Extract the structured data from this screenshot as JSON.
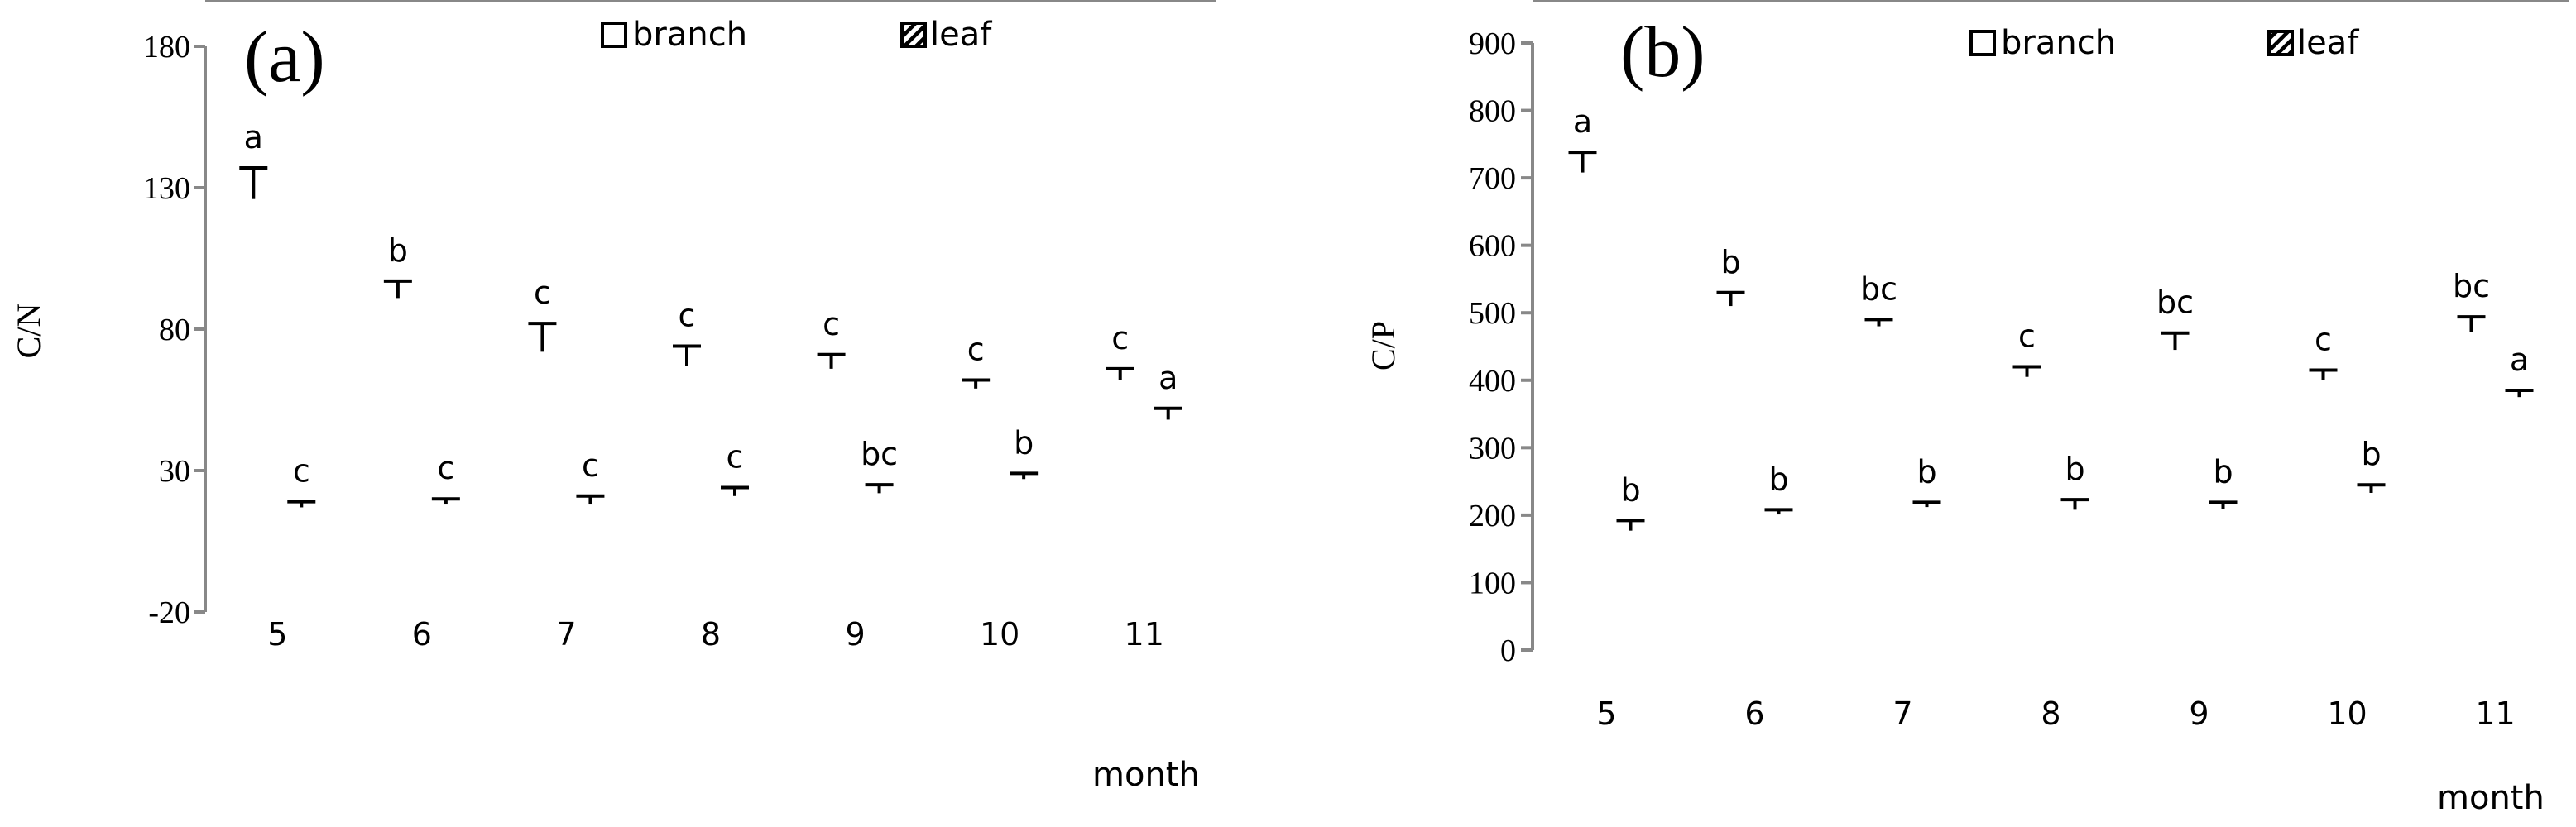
{
  "chart_data": [
    {
      "type": "bar",
      "panel_label": "(a)",
      "categories": [
        "5",
        "6",
        "7",
        "8",
        "9",
        "10",
        "11"
      ],
      "series": [
        {
          "name": "branch",
          "values": [
            126,
            91,
            72,
            67,
            66,
            59,
            62
          ],
          "errors": [
            11,
            6,
            10,
            7,
            5,
            3,
            4
          ],
          "letters": [
            "a",
            "b",
            "c",
            "c",
            "c",
            "c",
            "c"
          ]
        },
        {
          "name": "leaf",
          "values": [
            17,
            18,
            18,
            21,
            22,
            27,
            48
          ],
          "errors": [
            2,
            2,
            3,
            3,
            3,
            2,
            4
          ],
          "letters": [
            "c",
            "c",
            "c",
            "c",
            "bc",
            "b",
            "a"
          ]
        }
      ],
      "title": "",
      "xlabel": "month",
      "ylabel": "C/N",
      "ylim": [
        -20,
        180
      ],
      "yticks": [
        -20,
        30,
        80,
        130,
        180
      ],
      "legend": "top-center",
      "grid": false
    },
    {
      "type": "bar",
      "panel_label": "(b)",
      "categories": [
        "5",
        "6",
        "7",
        "8",
        "9",
        "10",
        "11"
      ],
      "series": [
        {
          "name": "branch",
          "values": [
            708,
            510,
            480,
            405,
            445,
            400,
            472
          ],
          "errors": [
            30,
            20,
            10,
            15,
            25,
            15,
            22
          ],
          "letters": [
            "a",
            "b",
            "bc",
            "c",
            "bc",
            "c",
            "bc"
          ]
        },
        {
          "name": "leaf",
          "values": [
            177,
            201,
            212,
            208,
            209,
            233,
            375
          ],
          "errors": [
            15,
            7,
            7,
            15,
            10,
            12,
            10
          ],
          "letters": [
            "b",
            "b",
            "b",
            "b",
            "b",
            "b",
            "a"
          ]
        }
      ],
      "title": "",
      "xlabel": "month",
      "ylabel": "C/P",
      "ylim": [
        0,
        900
      ],
      "yticks": [
        0,
        100,
        200,
        300,
        400,
        500,
        600,
        700,
        800,
        900
      ],
      "legend": "top-center",
      "grid": false
    }
  ]
}
